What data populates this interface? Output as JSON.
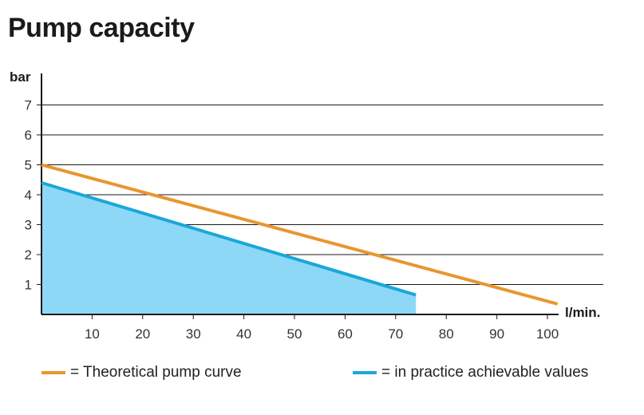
{
  "title": "Pump capacity",
  "chart_data": {
    "type": "line",
    "xlabel": "l/min.",
    "ylabel": "bar",
    "xlim": [
      0,
      102
    ],
    "ylim": [
      0,
      7.8
    ],
    "xticks": [
      10,
      20,
      30,
      40,
      50,
      60,
      70,
      80,
      90,
      100
    ],
    "yticks": [
      1,
      2,
      3,
      4,
      5,
      6,
      7
    ],
    "grid": "horizontal",
    "series": [
      {
        "name": "= Theoretical pump curve",
        "color": "#e8962e",
        "x": [
          0,
          102
        ],
        "y": [
          5.0,
          0.35
        ],
        "fill": false
      },
      {
        "name": "= in practice achievable values",
        "color": "#1aa7d8",
        "fill_color": "#8ed8f7",
        "x": [
          0,
          74
        ],
        "y": [
          4.4,
          0.65
        ],
        "fill": true
      }
    ],
    "legend_position": "bottom"
  }
}
